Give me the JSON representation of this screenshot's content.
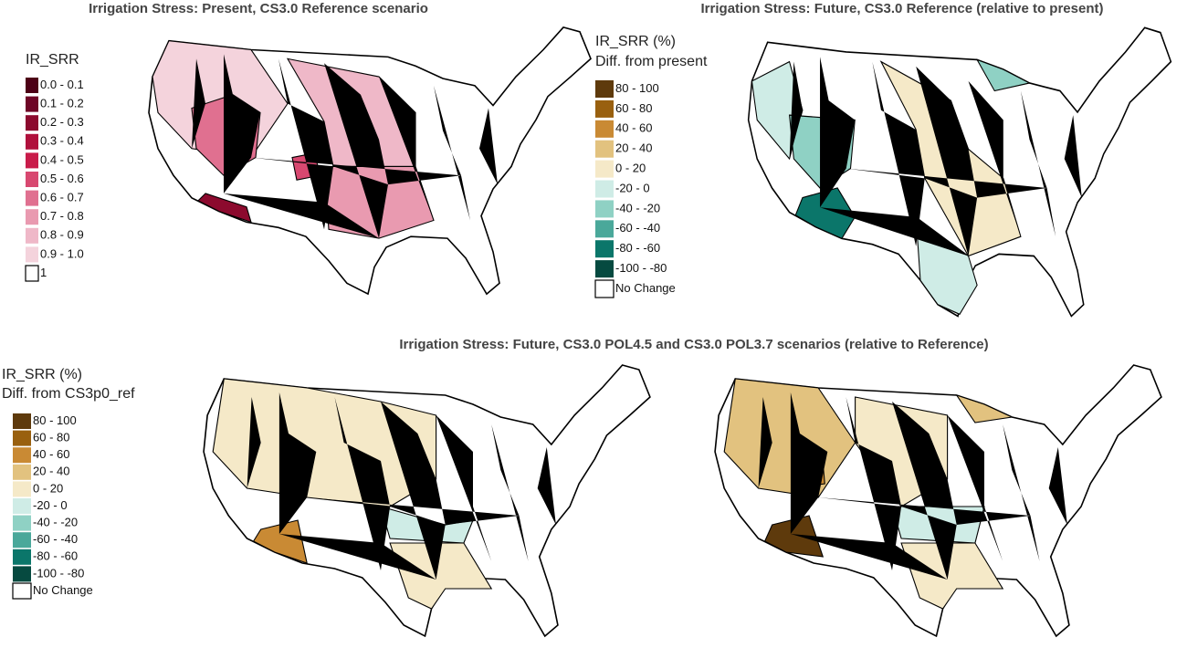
{
  "panels": [
    {
      "title": "Irrigation Stress: Present, CS3.0 Reference scenario",
      "legend": {
        "title": [
          "IR_SRR"
        ],
        "items": [
          {
            "label": "0.0 - 0.1",
            "color": "#4d0016"
          },
          {
            "label": "0.1 - 0.2",
            "color": "#6e0526"
          },
          {
            "label": "0.2 - 0.3",
            "color": "#8c0a2e"
          },
          {
            "label": "0.3 - 0.4",
            "color": "#b0103c"
          },
          {
            "label": "0.4 - 0.5",
            "color": "#c91c4a"
          },
          {
            "label": "0.5 - 0.6",
            "color": "#d84870"
          },
          {
            "label": "0.6 - 0.7",
            "color": "#e07090"
          },
          {
            "label": "0.7 - 0.8",
            "color": "#e99ab0"
          },
          {
            "label": "0.8 - 0.9",
            "color": "#efb8c8"
          },
          {
            "label": "0.9 - 1.0",
            "color": "#f4d3dc"
          },
          {
            "label": "1",
            "color": "#ffffff"
          }
        ]
      }
    },
    {
      "title": "Irrigation Stress: Future, CS3.0 Reference (relative to present)",
      "legend": {
        "title": [
          "IR_SRR (%)",
          "Diff. from present"
        ],
        "items": [
          {
            "label": "80 - 100",
            "color": "#5e3a0c"
          },
          {
            "label": "60 - 80",
            "color": "#99600f"
          },
          {
            "label": "40 - 60",
            "color": "#c98a34"
          },
          {
            "label": "20 - 40",
            "color": "#e2c27f"
          },
          {
            "label": "0 - 20",
            "color": "#f5e9c8"
          },
          {
            "label": "-20 - 0",
            "color": "#cfece6"
          },
          {
            "label": "-40 - -20",
            "color": "#8fd1c4"
          },
          {
            "label": "-60 - -40",
            "color": "#4aa89a"
          },
          {
            "label": "-80 - -60",
            "color": "#0b766a"
          },
          {
            "label": "-100 - -80",
            "color": "#064a40"
          },
          {
            "label": "No Change",
            "color": "#ffffff"
          }
        ]
      }
    },
    {
      "title": "Irrigation Stress: Future, CS3.0 POL4.5 and CS3.0 POL3.7 scenarios (relative to Reference)",
      "legend": {
        "title": [
          "IR_SRR (%)",
          "Diff. from CS3p0_ref"
        ],
        "items": [
          {
            "label": "80 - 100",
            "color": "#5e3a0c"
          },
          {
            "label": "60 - 80",
            "color": "#99600f"
          },
          {
            "label": "40 - 60",
            "color": "#c98a34"
          },
          {
            "label": "20 - 40",
            "color": "#e2c27f"
          },
          {
            "label": "0 - 20",
            "color": "#f5e9c8"
          },
          {
            "label": "-20 - 0",
            "color": "#cfece6"
          },
          {
            "label": "-40 - -20",
            "color": "#8fd1c4"
          },
          {
            "label": "-60 - -40",
            "color": "#4aa89a"
          },
          {
            "label": "-80 - -60",
            "color": "#0b766a"
          },
          {
            "label": "-100 - -80",
            "color": "#064a40"
          },
          {
            "label": "No Change",
            "color": "#ffffff"
          }
        ]
      }
    }
  ]
}
